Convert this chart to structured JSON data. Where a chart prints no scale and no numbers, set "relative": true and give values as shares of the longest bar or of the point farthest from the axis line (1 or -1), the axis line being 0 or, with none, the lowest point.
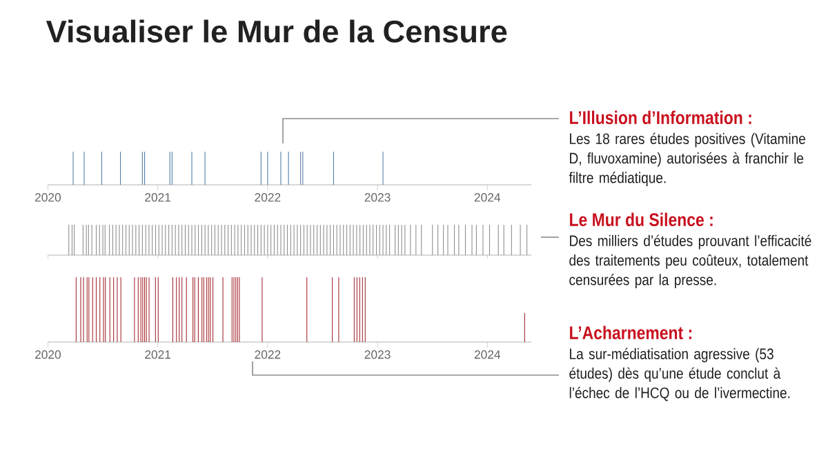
{
  "chart_data": [
    {
      "type": "bar",
      "title": "Visualiser le Mur de la Censure",
      "relative": true,
      "color": "#4f7aa6",
      "x": [
        2020.23,
        2020.33,
        2020.49,
        2020.66,
        2020.86,
        2020.88,
        2021.11,
        2021.13,
        2021.31,
        2021.43,
        2021.94,
        2022.0,
        2022.12,
        2022.19,
        2022.3,
        2022.32,
        2022.6,
        2023.05
      ],
      "values": [
        1,
        1,
        1,
        1,
        1,
        1,
        1,
        1,
        1,
        1,
        1,
        1,
        1,
        1,
        1,
        1,
        1,
        1
      ],
      "xlim": [
        2020,
        2024.4
      ],
      "xticks": [
        2020,
        2021,
        2022,
        2023,
        2024
      ],
      "annotations": [
        "L’Illusion d’Information :",
        "Les 18 rares études positives (Vitamine D, fluvoxamine) autorisées à franchir le filtre médiatique."
      ]
    },
    {
      "type": "bar",
      "relative": true,
      "color": "#8c8c8c",
      "tick_labels": false,
      "x": [
        2020.19,
        2020.22,
        2020.24,
        2020.32,
        2020.35,
        2020.37,
        2020.4,
        2020.44,
        2020.47,
        2020.5,
        2020.52,
        2020.56,
        2020.59,
        2020.62,
        2020.65,
        2020.68,
        2020.71,
        2020.74,
        2020.77,
        2020.8,
        2020.83,
        2020.86,
        2020.89,
        2020.92,
        2020.95,
        2020.98,
        2021.01,
        2021.04,
        2021.07,
        2021.1,
        2021.13,
        2021.16,
        2021.19,
        2021.22,
        2021.25,
        2021.28,
        2021.31,
        2021.34,
        2021.37,
        2021.4,
        2021.43,
        2021.46,
        2021.49,
        2021.52,
        2021.55,
        2021.58,
        2021.61,
        2021.64,
        2021.67,
        2021.7,
        2021.73,
        2021.76,
        2021.79,
        2021.82,
        2021.85,
        2021.88,
        2021.91,
        2021.94,
        2021.97,
        2022.0,
        2022.03,
        2022.06,
        2022.09,
        2022.12,
        2022.15,
        2022.18,
        2022.21,
        2022.24,
        2022.27,
        2022.3,
        2022.33,
        2022.36,
        2022.39,
        2022.42,
        2022.45,
        2022.48,
        2022.51,
        2022.54,
        2022.57,
        2022.6,
        2022.63,
        2022.66,
        2022.69,
        2022.72,
        2022.75,
        2022.78,
        2022.81,
        2022.84,
        2022.87,
        2022.9,
        2022.93,
        2022.96,
        2022.99,
        2023.02,
        2023.05,
        2023.08,
        2023.11,
        2023.16,
        2023.19,
        2023.22,
        2023.25,
        2023.3,
        2023.35,
        2023.4,
        2023.5,
        2023.55,
        2023.6,
        2023.64,
        2023.7,
        2023.74,
        2023.8,
        2023.86,
        2023.9,
        2023.96,
        2024.02,
        2024.1,
        2024.15,
        2024.22,
        2024.3,
        2024.36
      ],
      "values": [
        1,
        1,
        1,
        1,
        1,
        1,
        1,
        1,
        1,
        1,
        1,
        1,
        1,
        1,
        1,
        1,
        1,
        1,
        1,
        1,
        1,
        1,
        1,
        1,
        1,
        1,
        1,
        1,
        1,
        1,
        1,
        1,
        1,
        1,
        1,
        1,
        1,
        1,
        1,
        1,
        1,
        1,
        1,
        1,
        1,
        1,
        1,
        1,
        1,
        1,
        1,
        1,
        1,
        1,
        1,
        1,
        1,
        1,
        1,
        1,
        1,
        1,
        1,
        1,
        1,
        1,
        1,
        1,
        1,
        1,
        1,
        1,
        1,
        1,
        1,
        1,
        1,
        1,
        1,
        1,
        1,
        1,
        1,
        1,
        1,
        1,
        1,
        1,
        1,
        1,
        1,
        1,
        1,
        1,
        1,
        1,
        1,
        1,
        1,
        1,
        1,
        1,
        1,
        1,
        1,
        1,
        1,
        1,
        1,
        1,
        1,
        1,
        1,
        1,
        1,
        1,
        1,
        1,
        1,
        1
      ],
      "xlim": [
        2020,
        2024.4
      ],
      "xticks": [
        2020,
        2021,
        2022,
        2023,
        2024
      ],
      "annotations": [
        "Le Mur du Silence :",
        "Des milliers d’études prouvant l’efficacité des traitements peu coûteux, totalement censurées par la presse."
      ]
    },
    {
      "type": "bar",
      "relative": true,
      "color": "#a3262c",
      "x": [
        2020.257,
        2020.299,
        2020.324,
        2020.357,
        2020.373,
        2020.407,
        2020.44,
        2020.473,
        2020.506,
        2020.523,
        2020.564,
        2020.598,
        2020.631,
        2020.664,
        2020.788,
        2020.822,
        2020.846,
        2020.863,
        2020.88,
        2020.896,
        2020.921,
        2020.979,
        2021.004,
        2021.137,
        2021.17,
        2021.195,
        2021.22,
        2021.261,
        2021.32,
        2021.336,
        2021.369,
        2021.402,
        2021.419,
        2021.444,
        2021.461,
        2021.477,
        2021.502,
        2021.593,
        2021.676,
        2021.693,
        2021.71,
        2021.726,
        2021.743,
        2021.95,
        2022.357,
        2022.589,
        2022.647,
        2022.788,
        2022.813,
        2022.838,
        2022.863,
        2022.888,
        2024.34
      ],
      "values": [
        1,
        1,
        1,
        1,
        1,
        1,
        1,
        1,
        1,
        1,
        1,
        1,
        1,
        1,
        1,
        1,
        1,
        1,
        1,
        1,
        1,
        1,
        1,
        1,
        1,
        1,
        1,
        1,
        1,
        1,
        1,
        1,
        1,
        1,
        1,
        1,
        1,
        1,
        1,
        1,
        1,
        1,
        1,
        1,
        1,
        1,
        1,
        1,
        1,
        1,
        1,
        1,
        0.45
      ],
      "xlim": [
        2020,
        2024.4
      ],
      "xticks": [
        2020,
        2021,
        2022,
        2023,
        2024
      ],
      "annotations": [
        "L’Acharnement :",
        "La sur-médiatisation agressive (53 études) dès qu’une étude conclut à l’échec de l’HCQ ou de l’ivermectine."
      ]
    }
  ]
}
